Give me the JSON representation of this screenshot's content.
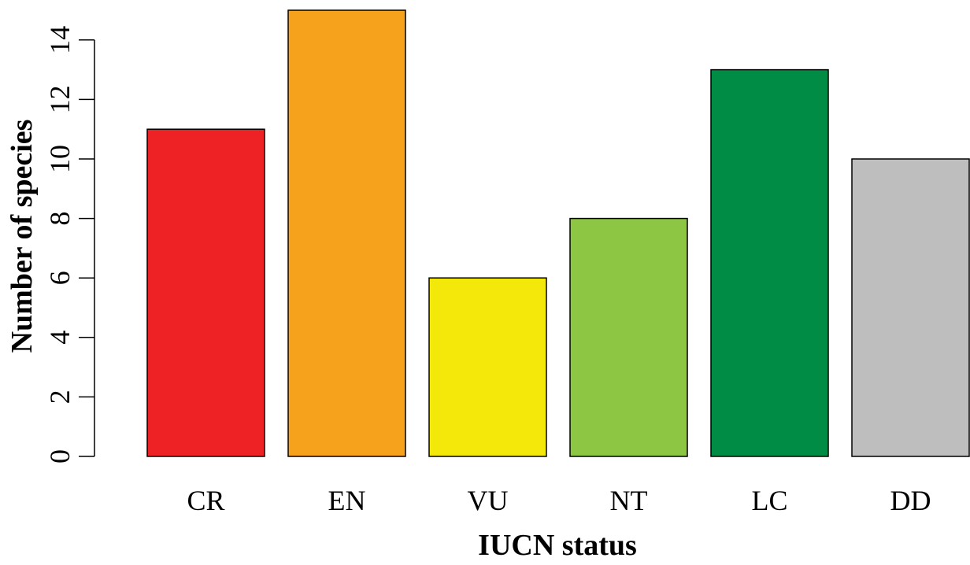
{
  "chart_data": {
    "type": "bar",
    "title": "",
    "xlabel": "IUCN status",
    "ylabel": "Number of species",
    "categories": [
      "CR",
      "EN",
      "VU",
      "NT",
      "LC",
      "DD"
    ],
    "values": [
      11,
      15,
      6,
      8,
      13,
      10
    ],
    "colors": [
      "#ee2224",
      "#f7a21c",
      "#f4e80b",
      "#8dc642",
      "#008c44",
      "#bebebe"
    ],
    "ylim": [
      0,
      15
    ],
    "yticks": [
      0,
      2,
      4,
      6,
      8,
      10,
      12,
      14
    ],
    "grid": false,
    "legend": "none"
  }
}
